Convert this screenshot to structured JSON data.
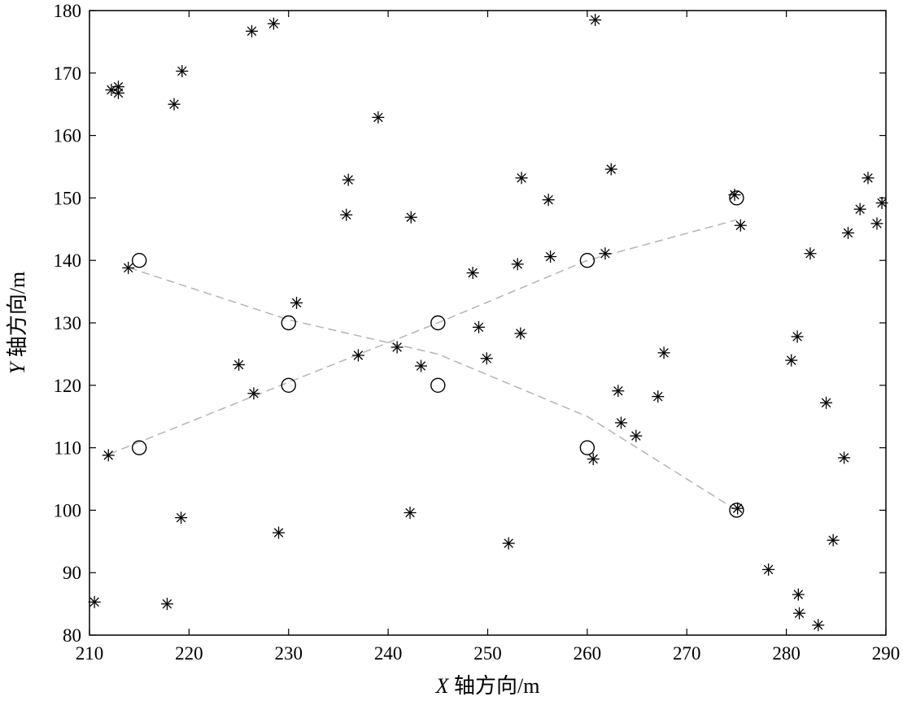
{
  "chart_data": {
    "type": "scatter",
    "xlabel": "X 轴方向/m",
    "ylabel": "Y 轴方向/m",
    "xlabel_parts": {
      "var": "X",
      "rest": " 轴方向/m"
    },
    "ylabel_parts": {
      "var": "Y",
      "rest": " 轴方向/m"
    },
    "xlim": [
      210,
      290
    ],
    "ylim": [
      80,
      180
    ],
    "xticks": [
      210,
      220,
      230,
      240,
      250,
      260,
      270,
      280,
      290
    ],
    "yticks": [
      80,
      90,
      100,
      110,
      120,
      130,
      140,
      150,
      160,
      170,
      180
    ],
    "grid": false,
    "legend": "none",
    "series": [
      {
        "marker": "asterisk",
        "color": "#000000",
        "points": [
          [
            210.5,
            85.3
          ],
          [
            211.9,
            108.8
          ],
          [
            212.2,
            167.3
          ],
          [
            212.9,
            167.8
          ],
          [
            212.9,
            166.8
          ],
          [
            213.9,
            138.8
          ],
          [
            217.8,
            85.0
          ],
          [
            218.5,
            165.0
          ],
          [
            219.2,
            98.8
          ],
          [
            219.3,
            170.3
          ],
          [
            225.0,
            123.3
          ],
          [
            226.3,
            176.7
          ],
          [
            226.5,
            118.7
          ],
          [
            228.5,
            177.9
          ],
          [
            229.0,
            96.4
          ],
          [
            230.8,
            133.2
          ],
          [
            235.8,
            147.3
          ],
          [
            236.0,
            152.9
          ],
          [
            237.0,
            124.8
          ],
          [
            239.0,
            162.9
          ],
          [
            240.9,
            126.1
          ],
          [
            242.2,
            99.6
          ],
          [
            242.3,
            146.9
          ],
          [
            243.3,
            123.1
          ],
          [
            248.5,
            138.0
          ],
          [
            249.1,
            129.3
          ],
          [
            249.9,
            124.3
          ],
          [
            252.1,
            94.7
          ],
          [
            253.0,
            139.4
          ],
          [
            253.3,
            128.3
          ],
          [
            253.4,
            153.2
          ],
          [
            256.1,
            149.7
          ],
          [
            256.3,
            140.6
          ],
          [
            260.6,
            108.2
          ],
          [
            260.8,
            178.5
          ],
          [
            261.8,
            141.1
          ],
          [
            262.4,
            154.6
          ],
          [
            263.1,
            119.1
          ],
          [
            263.4,
            114.0
          ],
          [
            264.9,
            111.9
          ],
          [
            267.1,
            118.2
          ],
          [
            267.7,
            125.2
          ],
          [
            274.8,
            150.5
          ],
          [
            275.1,
            100.3
          ],
          [
            275.4,
            145.6
          ],
          [
            278.2,
            90.5
          ],
          [
            280.5,
            124.0
          ],
          [
            281.1,
            127.8
          ],
          [
            281.2,
            86.5
          ],
          [
            281.3,
            83.5
          ],
          [
            282.4,
            141.1
          ],
          [
            283.2,
            81.6
          ],
          [
            284.0,
            117.2
          ],
          [
            284.7,
            95.2
          ],
          [
            285.8,
            108.4
          ],
          [
            286.2,
            144.4
          ],
          [
            287.4,
            148.2
          ],
          [
            288.2,
            153.2
          ],
          [
            289.1,
            145.9
          ],
          [
            289.6,
            149.2
          ]
        ]
      },
      {
        "marker": "circle",
        "color": "#000000",
        "points": [
          [
            215,
            140
          ],
          [
            215,
            110
          ],
          [
            230,
            130
          ],
          [
            230,
            120
          ],
          [
            245,
            130
          ],
          [
            245,
            120
          ],
          [
            260,
            140
          ],
          [
            260,
            110
          ],
          [
            275,
            150
          ],
          [
            275,
            100
          ]
        ]
      }
    ],
    "lines": [
      {
        "style": "dashed",
        "color": "#b4b4b4",
        "points": [
          [
            212,
            109
          ],
          [
            230,
            120.5
          ],
          [
            245,
            130
          ],
          [
            260,
            140
          ],
          [
            275,
            146.5
          ]
        ]
      },
      {
        "style": "dashed",
        "color": "#b4b4b4",
        "points": [
          [
            214,
            138.8
          ],
          [
            230,
            130.5
          ],
          [
            245,
            125
          ],
          [
            260,
            115
          ],
          [
            275,
            100
          ]
        ]
      }
    ]
  }
}
